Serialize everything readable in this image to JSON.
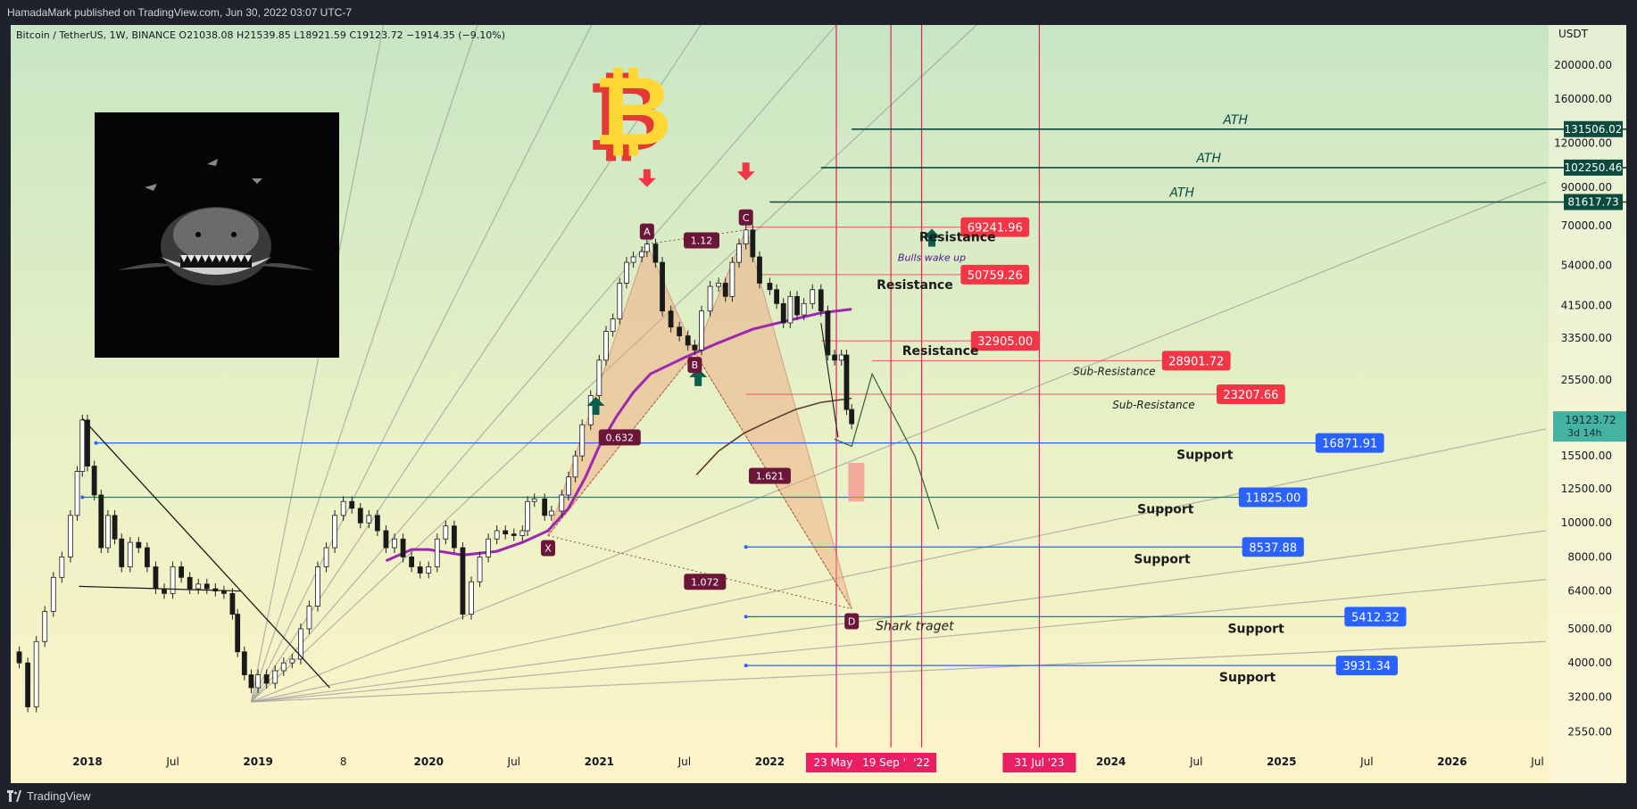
{
  "header": {
    "published": "HamadaMark published on TradingView.com, Jun 30, 2022 03:07 UTC-7"
  },
  "footer": {
    "brand": "TradingView"
  },
  "chart_data": {
    "type": "candlestick",
    "symbol_line": "Bitcoin / TetherUS, 1W, BINANCE  O21038.08  H21539.85  L18921.59  C19123.72  −1914.35 (−9.10%)",
    "y_unit": "USDT",
    "y_scale": "log",
    "ylim": [
      2300,
      260000
    ],
    "xlim": [
      2017.55,
      2026.55
    ],
    "y_ticks": [
      "200000.00",
      "160000.00",
      "120000.00",
      "90000.00",
      "70000.00",
      "54000.00",
      "41500.00",
      "33500.00",
      "25500.00",
      "15500.00",
      "12500.00",
      "10000.00",
      "8000.00",
      "6400.00",
      "5000.00",
      "4000.00",
      "3200.00",
      "2550.00"
    ],
    "x_ticks": [
      {
        "label": "2018",
        "t": 2018.0,
        "bold": true
      },
      {
        "label": "Jul",
        "t": 2018.5
      },
      {
        "label": "2019",
        "t": 2019.0,
        "bold": true
      },
      {
        "label": "8",
        "t": 2019.5
      },
      {
        "label": "2020",
        "t": 2020.0,
        "bold": true
      },
      {
        "label": "Jul",
        "t": 2020.5
      },
      {
        "label": "2021",
        "t": 2021.0,
        "bold": true
      },
      {
        "label": "Jul",
        "t": 2021.5
      },
      {
        "label": "2022",
        "t": 2022.0,
        "bold": true
      },
      {
        "label": "2024",
        "t": 2024.0,
        "bold": true
      },
      {
        "label": "Jul",
        "t": 2024.5
      },
      {
        "label": "2025",
        "t": 2025.0,
        "bold": true
      },
      {
        "label": "Jul",
        "t": 2025.5
      },
      {
        "label": "2026",
        "t": 2026.0,
        "bold": true
      },
      {
        "label": "Jul",
        "t": 2026.5
      }
    ],
    "price_path": [
      [
        2017.55,
        4300
      ],
      [
        2017.6,
        4000
      ],
      [
        2017.65,
        3000
      ],
      [
        2017.7,
        4600
      ],
      [
        2017.75,
        5600
      ],
      [
        2017.8,
        7000
      ],
      [
        2017.85,
        8000
      ],
      [
        2017.9,
        10500
      ],
      [
        2017.94,
        14000
      ],
      [
        2017.97,
        19600
      ],
      [
        2018.0,
        14500
      ],
      [
        2018.04,
        12000
      ],
      [
        2018.08,
        8500
      ],
      [
        2018.12,
        10500
      ],
      [
        2018.16,
        9000
      ],
      [
        2018.2,
        7500
      ],
      [
        2018.25,
        8800
      ],
      [
        2018.3,
        8500
      ],
      [
        2018.35,
        7500
      ],
      [
        2018.4,
        6500
      ],
      [
        2018.45,
        6300
      ],
      [
        2018.5,
        7500
      ],
      [
        2018.55,
        7000
      ],
      [
        2018.6,
        6500
      ],
      [
        2018.65,
        6700
      ],
      [
        2018.7,
        6500
      ],
      [
        2018.75,
        6400
      ],
      [
        2018.8,
        6300
      ],
      [
        2018.85,
        5500
      ],
      [
        2018.88,
        4300
      ],
      [
        2018.92,
        3700
      ],
      [
        2018.96,
        3400
      ],
      [
        2019.0,
        3700
      ],
      [
        2019.05,
        3500
      ],
      [
        2019.1,
        3800
      ],
      [
        2019.15,
        4000
      ],
      [
        2019.2,
        4100
      ],
      [
        2019.25,
        5000
      ],
      [
        2019.3,
        5800
      ],
      [
        2019.35,
        7500
      ],
      [
        2019.4,
        8500
      ],
      [
        2019.45,
        10500
      ],
      [
        2019.5,
        11500
      ],
      [
        2019.55,
        11000
      ],
      [
        2019.6,
        10000
      ],
      [
        2019.65,
        10500
      ],
      [
        2019.7,
        9500
      ],
      [
        2019.75,
        8500
      ],
      [
        2019.8,
        9000
      ],
      [
        2019.85,
        8000
      ],
      [
        2019.9,
        7500
      ],
      [
        2019.95,
        7200
      ],
      [
        2020.0,
        7500
      ],
      [
        2020.05,
        9000
      ],
      [
        2020.1,
        9800
      ],
      [
        2020.15,
        8500
      ],
      [
        2020.2,
        5500
      ],
      [
        2020.25,
        6800
      ],
      [
        2020.3,
        8000
      ],
      [
        2020.35,
        9000
      ],
      [
        2020.4,
        9500
      ],
      [
        2020.45,
        9300
      ],
      [
        2020.5,
        9200
      ],
      [
        2020.55,
        9500
      ],
      [
        2020.58,
        11500
      ],
      [
        2020.62,
        11700
      ],
      [
        2020.68,
        10500
      ],
      [
        2020.72,
        10800
      ],
      [
        2020.78,
        12000
      ],
      [
        2020.82,
        13500
      ],
      [
        2020.86,
        15500
      ],
      [
        2020.9,
        19000
      ],
      [
        2020.95,
        23000
      ],
      [
        2021.0,
        29000
      ],
      [
        2021.04,
        35000
      ],
      [
        2021.08,
        38000
      ],
      [
        2021.12,
        48000
      ],
      [
        2021.16,
        55000
      ],
      [
        2021.2,
        57000
      ],
      [
        2021.25,
        59000
      ],
      [
        2021.28,
        62000
      ],
      [
        2021.33,
        55000
      ],
      [
        2021.37,
        40000
      ],
      [
        2021.42,
        36000
      ],
      [
        2021.47,
        34000
      ],
      [
        2021.52,
        32000
      ],
      [
        2021.56,
        31000
      ],
      [
        2021.6,
        40000
      ],
      [
        2021.65,
        47000
      ],
      [
        2021.7,
        48000
      ],
      [
        2021.74,
        44000
      ],
      [
        2021.78,
        55000
      ],
      [
        2021.82,
        62000
      ],
      [
        2021.86,
        68000
      ],
      [
        2021.9,
        57000
      ],
      [
        2021.94,
        48000
      ],
      [
        2022.0,
        46000
      ],
      [
        2022.04,
        42000
      ],
      [
        2022.08,
        37000
      ],
      [
        2022.12,
        44000
      ],
      [
        2022.16,
        39000
      ],
      [
        2022.2,
        42000
      ],
      [
        2022.25,
        46000
      ],
      [
        2022.3,
        40000
      ],
      [
        2022.34,
        30000
      ],
      [
        2022.38,
        29000
      ],
      [
        2022.42,
        30000
      ],
      [
        2022.45,
        21000
      ],
      [
        2022.48,
        19123
      ]
    ],
    "ma_purple": [
      [
        2019.75,
        7800
      ],
      [
        2019.9,
        8400
      ],
      [
        2020.0,
        8400
      ],
      [
        2020.2,
        8100
      ],
      [
        2020.4,
        8300
      ],
      [
        2020.55,
        8800
      ],
      [
        2020.7,
        9500
      ],
      [
        2020.82,
        11000
      ],
      [
        2020.92,
        13500
      ],
      [
        2021.0,
        16500
      ],
      [
        2021.1,
        20000
      ],
      [
        2021.2,
        23500
      ],
      [
        2021.3,
        26500
      ],
      [
        2021.5,
        29500
      ],
      [
        2021.7,
        32500
      ],
      [
        2021.9,
        35500
      ],
      [
        2022.1,
        37500
      ],
      [
        2022.3,
        39500
      ],
      [
        2022.48,
        40500
      ]
    ],
    "ma_brown": [
      [
        2021.57,
        13700
      ],
      [
        2021.7,
        16000
      ],
      [
        2021.85,
        18000
      ],
      [
        2022.0,
        19500
      ],
      [
        2022.15,
        21000
      ],
      [
        2022.3,
        22000
      ],
      [
        2022.48,
        22600
      ]
    ],
    "fan_origin": [
      2018.96,
      3100
    ],
    "fan_targets": [
      [
        2019.76,
        300000
      ],
      [
        2020.33,
        300000
      ],
      [
        2021.02,
        300000
      ],
      [
        2021.68,
        300000
      ],
      [
        2022.5,
        300000
      ],
      [
        2023.35,
        300000
      ],
      [
        2026.55,
        93000
      ],
      [
        2026.55,
        18500
      ],
      [
        2026.55,
        9500
      ],
      [
        2026.55,
        6900
      ],
      [
        2026.55,
        4600
      ]
    ],
    "ath_lines": [
      {
        "label": "ATH",
        "price": 131506.02,
        "tag": "131506.02",
        "t0": 2022.48
      },
      {
        "label": "ATH",
        "price": 102250.46,
        "tag": "102250.46",
        "t0": 2022.3
      },
      {
        "label": "ATH",
        "price": 81617.73,
        "tag": "81617.73",
        "t0": 2022.0
      }
    ],
    "resistances": [
      {
        "price": 69241.96,
        "tag": "69241.96",
        "label": "Resistance",
        "t0": 2021.86,
        "tag_t": 2023.32,
        "label_t": 2023.1
      },
      {
        "price": 50759.26,
        "tag": "50759.26",
        "label": "Resistance",
        "t0": 2021.95,
        "tag_t": 2023.32,
        "label_t": 2022.85
      },
      {
        "price": 32905.0,
        "tag": "32905.00",
        "label": "Resistance",
        "t0": 2022.3,
        "tag_t": 2023.38,
        "label_t": 2023.0
      },
      {
        "price": 28901.72,
        "tag": "28901.72",
        "label": "Sub-Resistance",
        "t0": 2022.6,
        "tag_t": 2024.5,
        "label_t": 2024.02,
        "italic": true
      },
      {
        "price": 23207.66,
        "tag": "23207.66",
        "label": "Sub-Resistance",
        "t0": 2021.86,
        "tag_t": 2024.82,
        "label_t": 2024.25,
        "italic": true
      }
    ],
    "supports": [
      {
        "price": 16871.91,
        "tag": "16871.91",
        "label": "Support",
        "t0": 2018.05,
        "tag_t": 2025.4,
        "label_t": 2024.55
      },
      {
        "price": 11825.0,
        "tag": "11825.00",
        "label": "Support",
        "t0": 2017.97,
        "tag_t": 2024.95,
        "label_t": 2024.32
      },
      {
        "price": 8537.88,
        "tag": "8537.88",
        "label": "Support",
        "t0": 2021.86,
        "tag_t": 2024.95,
        "label_t": 2024.3
      },
      {
        "price": 5412.32,
        "tag": "5412.32",
        "label": "Support",
        "t0": 2021.86,
        "tag_t": 2025.55,
        "label_t": 2024.85
      },
      {
        "price": 3931.34,
        "tag": "3931.34",
        "label": "Support",
        "t0": 2021.86,
        "tag_t": 2025.5,
        "label_t": 2024.8
      }
    ],
    "price_tag": {
      "value": "19123.72",
      "countdown": "3d 14h",
      "price": 19123.72
    },
    "pattern_points": [
      {
        "label": "X",
        "t": 2020.7,
        "p": 9200
      },
      {
        "label": "A",
        "t": 2021.28,
        "p": 62000
      },
      {
        "label": "B",
        "t": 2021.56,
        "p": 30500
      },
      {
        "label": "C",
        "t": 2021.86,
        "p": 68000
      },
      {
        "label": "D",
        "t": 2022.48,
        "p": 5700
      }
    ],
    "ratios": [
      {
        "label": "1.12",
        "t": 2021.6,
        "p": 63500
      },
      {
        "label": "0.632",
        "t": 2021.12,
        "p": 17500
      },
      {
        "label": "1.621",
        "t": 2022.0,
        "p": 13600
      },
      {
        "label": "1.072",
        "t": 2021.62,
        "p": 6800
      }
    ],
    "annotations": {
      "bulls_wake_up": "Bulls wake up",
      "shark_target": "Shark traget"
    },
    "vertical_lines": [
      {
        "t": 2022.39,
        "label": "23 May '"
      },
      {
        "t": 2022.71,
        "label": "19 Sep '22"
      },
      {
        "t": 2022.89,
        "label": "'22"
      },
      {
        "t": 2023.58,
        "label": "31 Jul '23"
      }
    ],
    "colors": {
      "resistance": "#f23645",
      "support": "#2962ff",
      "ath": "#0b4a3d",
      "purple_ma": "#9c27b0",
      "brown_ma": "#5d3a2e",
      "pattern_fill": "#f2a37a",
      "label_bg": "#6b1538",
      "vertical": "#e91e63",
      "up_arrow": "#0b5e4a",
      "down_arrow": "#f23645"
    }
  }
}
